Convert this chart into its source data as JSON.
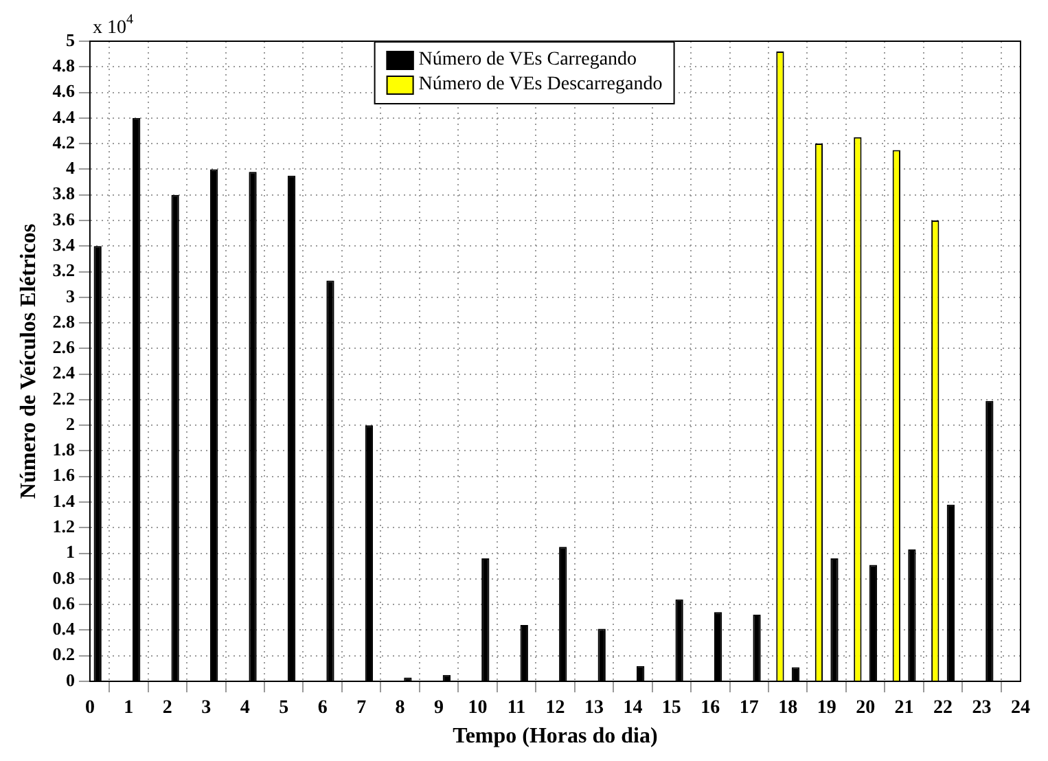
{
  "chart_data": {
    "type": "bar",
    "xlabel": "Tempo (Horas do dia)",
    "ylabel": "Número de Veículos Elétricos",
    "annotations": [
      "x 10$^{4}$"
    ],
    "x": [
      0,
      1,
      2,
      3,
      4,
      5,
      6,
      7,
      8,
      9,
      10,
      11,
      12,
      13,
      14,
      15,
      16,
      17,
      18,
      19,
      20,
      21,
      22,
      23
    ],
    "series": [
      {
        "name": "Número de VEs Descarregando",
        "color": "#ffff00",
        "values": [
          0,
          0,
          0,
          0,
          0,
          0,
          0,
          0,
          0,
          0,
          0,
          0,
          0,
          0,
          0,
          0,
          0,
          0,
          4.92,
          4.2,
          4.25,
          4.15,
          3.6,
          0
        ]
      },
      {
        "name": "Número de VEs Carregando",
        "color": "#000000",
        "values": [
          3.4,
          4.4,
          3.8,
          4.0,
          3.98,
          3.95,
          3.13,
          2.0,
          0.03,
          0.05,
          0.96,
          0.44,
          1.05,
          0.41,
          0.12,
          0.64,
          0.54,
          0.52,
          0.11,
          0.96,
          0.91,
          1.03,
          1.38,
          2.19
        ]
      }
    ],
    "xlim": [
      0,
      24
    ],
    "xticks": [
      0,
      1,
      2,
      3,
      4,
      5,
      6,
      7,
      8,
      9,
      10,
      11,
      12,
      13,
      14,
      15,
      16,
      17,
      18,
      19,
      20,
      21,
      22,
      23,
      24
    ],
    "ylim": [
      0,
      5
    ],
    "yticks": [
      0,
      0.2,
      0.4,
      0.6,
      0.8,
      1,
      1.2,
      1.4,
      1.6,
      1.8,
      2,
      2.2,
      2.4,
      2.6,
      2.8,
      3,
      3.2,
      3.4,
      3.6,
      3.8,
      4,
      4.2,
      4.4,
      4.6,
      4.8,
      5
    ],
    "grid": true,
    "legend": "top"
  }
}
